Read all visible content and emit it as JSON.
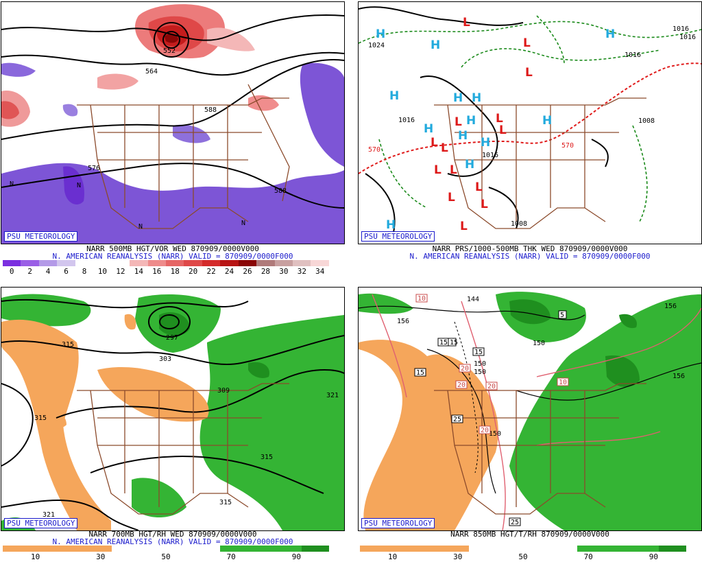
{
  "branding": "PSU METEOROLOGY",
  "panels": {
    "p500": {
      "title_line1": "NARR 500MB HGT/VOR WED 870909/0000V000",
      "title_line2": "N. AMERICAN REANALYSIS (NARR) VALID = 870909/0000F000",
      "colorbar": {
        "colors": [
          "#7b2fe0",
          "#9a5fe6",
          "#b49ae8",
          "#d2c6ee",
          "#ffffff",
          "#ffffff",
          "#ffffff",
          "#f4b7b7",
          "#ee8b8b",
          "#e66565",
          "#df4848",
          "#d42a2a",
          "#b81414",
          "#8a0606",
          "#b07a7a",
          "#c8a0a0",
          "#e0c0c0",
          "#f8d7d7"
        ],
        "ticks": [
          "0",
          "2",
          "4",
          "6",
          "8",
          "10",
          "12",
          "14",
          "16",
          "18",
          "20",
          "22",
          "24",
          "26",
          "28",
          "30",
          "32",
          "34"
        ]
      },
      "contour_labels": [
        "552",
        "564",
        "576",
        "588",
        "588",
        "N",
        "N",
        "N",
        "N"
      ]
    },
    "pmslp": {
      "title_line1": "NARR PRS/1000-500MB THK WED 870909/0000V000",
      "title_line2": "N. AMERICAN REANALYSIS (NARR) VALID = 870909/0000F000",
      "highs": [
        "H",
        "H",
        "H",
        "H",
        "H",
        "H",
        "H",
        "H",
        "H",
        "H",
        "H",
        "H",
        "H"
      ],
      "lows": [
        "L",
        "L",
        "L",
        "L",
        "L",
        "L",
        "L",
        "L",
        "L",
        "L",
        "L",
        "L",
        "L",
        "L"
      ],
      "contour_labels": [
        "1024",
        "1016",
        "1016",
        "1016",
        "1016",
        "1016",
        "1008",
        "1008",
        "570",
        "570"
      ]
    },
    "p700": {
      "title_line1": "NARR 700MB HGT/RH WED 870909/0000V000",
      "title_line2": "N. AMERICAN REANALYSIS (NARR) VALID = 870909/0000F000",
      "colorbar": {
        "colors": [
          "#f5a65b",
          "#f5a65b",
          "#f5a65b",
          "#f5a65b",
          "#ffffff",
          "#ffffff",
          "#ffffff",
          "#ffffff",
          "#34b434",
          "#34b434",
          "#34b434",
          "#1f8f1f"
        ],
        "ticks": [
          "10",
          "30",
          "50",
          "70",
          "90"
        ]
      },
      "contour_labels": [
        "315",
        "297",
        "303",
        "309",
        "321",
        "315",
        "315",
        "321",
        "315"
      ]
    },
    "p850": {
      "title_line1": "NARR 850MB HGT/T/RH 870909/0000V000",
      "colorbar": {
        "colors": [
          "#f5a65b",
          "#f5a65b",
          "#f5a65b",
          "#f5a65b",
          "#ffffff",
          "#ffffff",
          "#ffffff",
          "#ffffff",
          "#34b434",
          "#34b434",
          "#34b434",
          "#1f8f1f"
        ],
        "ticks": [
          "10",
          "30",
          "50",
          "70",
          "90"
        ]
      },
      "contour_labels": [
        "156",
        "150",
        "150",
        "156",
        "150",
        "144",
        "156",
        "150"
      ],
      "temp_boxes": [
        "10",
        "15",
        "15",
        "15",
        "15",
        "20",
        "20",
        "20",
        "25",
        "20",
        "5",
        "10",
        "25"
      ]
    }
  }
}
